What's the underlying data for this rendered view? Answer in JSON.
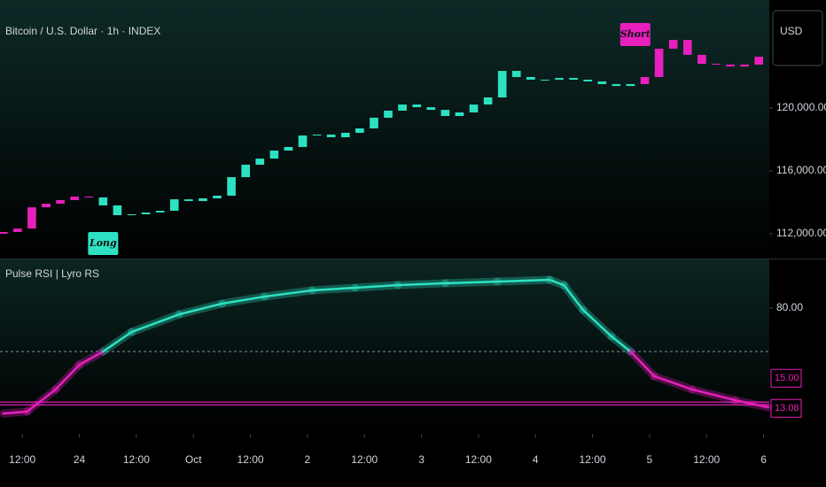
{
  "chart_data": {
    "type": "candlestick",
    "title": "Bitcoin / U.S. Dollar · 1h · INDEX",
    "currency": "USD",
    "long_color": "#2de1c2",
    "short_color": "#e81fbd",
    "x": [
      8,
      11,
      14,
      17,
      20,
      23,
      26,
      29,
      32,
      35,
      38,
      41,
      44,
      47,
      50,
      53,
      56,
      59,
      62,
      65,
      68,
      71,
      74,
      77,
      80,
      83,
      86,
      89,
      92,
      95,
      98,
      101,
      104,
      107,
      110,
      113,
      116,
      119,
      122,
      125,
      128,
      131,
      134,
      137,
      140,
      143,
      146,
      149,
      152,
      155,
      158,
      161,
      164,
      167
    ],
    "open": [
      112000,
      112110,
      112330,
      113680,
      113910,
      114140,
      114360,
      114310,
      113800,
      113180,
      113240,
      113350,
      113460,
      114190,
      114080,
      114250,
      114420,
      115600,
      116390,
      116780,
      117290,
      117520,
      118250,
      118310,
      118140,
      118420,
      118700,
      119380,
      119830,
      120220,
      120050,
      119880,
      119490,
      119720,
      120220,
      120670,
      122360,
      121970,
      121800,
      121800,
      121910,
      121800,
      121690,
      121520,
      121400,
      121520,
      121970,
      123770,
      124330,
      123380,
      122810,
      122760,
      122640,
      122760
    ],
    "close": [
      112110,
      112330,
      113680,
      113910,
      114140,
      114360,
      114310,
      113800,
      113180,
      113240,
      113350,
      113460,
      114190,
      114080,
      114250,
      114420,
      115600,
      116390,
      116780,
      117290,
      117520,
      118250,
      118310,
      118140,
      118420,
      118700,
      119380,
      119830,
      120220,
      120050,
      119880,
      119490,
      119720,
      120220,
      120670,
      122360,
      121970,
      121800,
      121800,
      121910,
      121800,
      121690,
      121520,
      121400,
      121520,
      121970,
      123770,
      124330,
      123380,
      122810,
      122760,
      122640,
      122760,
      123260
    ],
    "xlim": [
      7.3,
      169.2
    ],
    "xticks": [
      {
        "value": 12,
        "label": "12:00"
      },
      24,
      {
        "value": 36,
        "label": "12:00"
      },
      {
        "value": 48,
        "label": "Oct"
      },
      {
        "value": 60,
        "label": "12:00"
      },
      {
        "value": 72,
        "label": "2"
      },
      {
        "value": 84,
        "label": "12:00"
      },
      {
        "value": 96,
        "label": "3"
      },
      {
        "value": 108,
        "label": "12:00"
      },
      {
        "value": 120,
        "label": "4"
      },
      {
        "value": 132,
        "label": "12:00"
      },
      {
        "value": 144,
        "label": "5"
      },
      {
        "value": 156,
        "label": "12:00"
      },
      {
        "value": 168,
        "label": "6"
      }
    ],
    "ylim": [
      110420,
      126870
    ],
    "yticks": [
      {
        "value": 112000,
        "label": "112,000.00"
      },
      {
        "value": 116000,
        "label": "116,000.00"
      },
      {
        "value": 120000,
        "label": "120,000.00"
      }
    ],
    "signals": [
      {
        "label": "Long",
        "x": 29
      },
      {
        "label": "Short",
        "x": 141
      }
    ],
    "indicator": {
      "type": "line",
      "title": "Pulse RSI | Lyro RS",
      "x": [
        8,
        13,
        19,
        24,
        29,
        35,
        45,
        54,
        63,
        73,
        82,
        91,
        101,
        112,
        123,
        126,
        130,
        136,
        140,
        145,
        153,
        162,
        169
      ],
      "values": [
        7.1,
        8.4,
        23.7,
        40.8,
        50,
        63.5,
        75.7,
        83.1,
        88,
        92.3,
        94.1,
        95.9,
        97.2,
        98.4,
        99.6,
        95.9,
        78.8,
        60.4,
        50,
        32.9,
        23.7,
        16.3,
        11.4
      ],
      "midline": 50,
      "ylim": [
        -7,
        113.7
      ],
      "yticks": [
        {
          "value": 80,
          "label": "80.00"
        }
      ],
      "level_labels": [
        {
          "value": 15,
          "label": "15.00"
        },
        {
          "value": 13.08,
          "label": "13.08"
        }
      ]
    }
  }
}
